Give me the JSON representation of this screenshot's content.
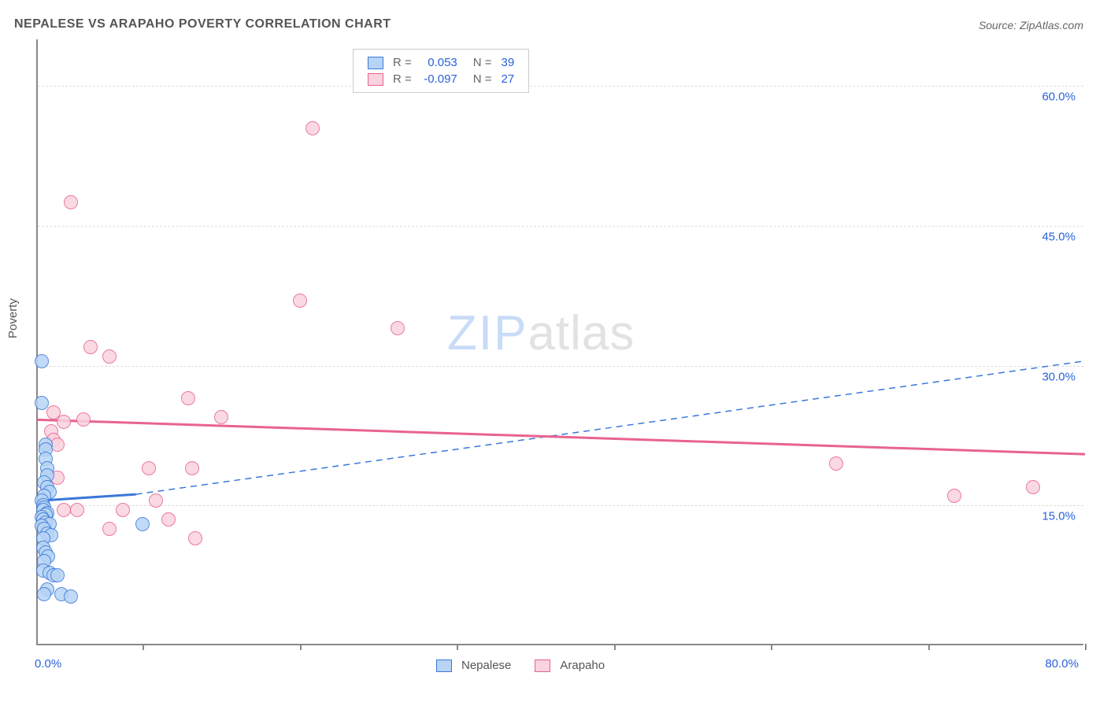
{
  "title": "NEPALESE VS ARAPAHO POVERTY CORRELATION CHART",
  "source": "Source: ZipAtlas.com",
  "ylabel": "Poverty",
  "watermark": {
    "zip": "ZIP",
    "atlas": "atlas"
  },
  "chart": {
    "type": "scatter",
    "xlim": [
      0,
      80
    ],
    "ylim": [
      0,
      65
    ],
    "x_axis_label_min": "0.0%",
    "x_axis_label_max": "80.0%",
    "y_grid": [
      {
        "value": 15,
        "label": "15.0%"
      },
      {
        "value": 30,
        "label": "30.0%"
      },
      {
        "value": 45,
        "label": "45.0%"
      },
      {
        "value": 60,
        "label": "60.0%"
      }
    ],
    "x_ticks": [
      8,
      20,
      32,
      44,
      56,
      68,
      80
    ],
    "background_color": "#ffffff",
    "grid_color": "#dddddd",
    "axis_color": "#888888",
    "point_radius": 9,
    "series": [
      {
        "name": "Nepalese",
        "fill": "#b7d4f5",
        "stroke": "#3b78d8",
        "r_value": "0.053",
        "n_value": "39",
        "trend": {
          "x1": 0,
          "y1": 15.5,
          "x2": 7.5,
          "y2": 16.2,
          "dash_to_x": 80,
          "dash_to_y": 30.5,
          "solid_width": 3,
          "dash_pattern": "8,6"
        },
        "points": [
          [
            0.3,
            30.5
          ],
          [
            0.3,
            26.0
          ],
          [
            0.6,
            21.5
          ],
          [
            0.6,
            21.0
          ],
          [
            0.6,
            20.0
          ],
          [
            0.7,
            19.0
          ],
          [
            0.7,
            18.2
          ],
          [
            0.5,
            17.5
          ],
          [
            0.7,
            17.0
          ],
          [
            0.9,
            16.5
          ],
          [
            0.5,
            16.0
          ],
          [
            0.3,
            15.5
          ],
          [
            0.4,
            15.0
          ],
          [
            0.5,
            14.8
          ],
          [
            0.4,
            14.5
          ],
          [
            0.7,
            14.2
          ],
          [
            0.6,
            14.0
          ],
          [
            0.3,
            13.8
          ],
          [
            0.4,
            13.5
          ],
          [
            0.6,
            13.2
          ],
          [
            0.9,
            13.0
          ],
          [
            0.3,
            12.8
          ],
          [
            0.5,
            12.5
          ],
          [
            0.7,
            12.0
          ],
          [
            1.0,
            11.8
          ],
          [
            0.4,
            11.5
          ],
          [
            0.4,
            10.5
          ],
          [
            0.6,
            10.0
          ],
          [
            0.8,
            9.5
          ],
          [
            0.5,
            9.0
          ],
          [
            0.4,
            8.0
          ],
          [
            0.9,
            7.8
          ],
          [
            1.2,
            7.5
          ],
          [
            1.5,
            7.5
          ],
          [
            0.7,
            6.0
          ],
          [
            0.5,
            5.5
          ],
          [
            1.8,
            5.5
          ],
          [
            2.5,
            5.2
          ],
          [
            8.0,
            13.0
          ]
        ]
      },
      {
        "name": "Arapaho",
        "fill": "#fad3de",
        "stroke": "#e8638f",
        "r_value": "-0.097",
        "n_value": "27",
        "trend": {
          "x1": 0,
          "y1": 24.2,
          "x2": 80,
          "y2": 20.5,
          "solid_width": 3
        },
        "points": [
          [
            2.5,
            47.5
          ],
          [
            21.0,
            55.5
          ],
          [
            20.0,
            37.0
          ],
          [
            27.5,
            34.0
          ],
          [
            4.0,
            32.0
          ],
          [
            5.5,
            31.0
          ],
          [
            11.5,
            26.5
          ],
          [
            1.2,
            25.0
          ],
          [
            14.0,
            24.5
          ],
          [
            1.0,
            23.0
          ],
          [
            1.2,
            22.0
          ],
          [
            1.5,
            21.5
          ],
          [
            3.5,
            24.2
          ],
          [
            8.5,
            19.0
          ],
          [
            11.8,
            19.0
          ],
          [
            61.0,
            19.5
          ],
          [
            9.0,
            15.5
          ],
          [
            70.0,
            16.0
          ],
          [
            76.0,
            17.0
          ],
          [
            10.0,
            13.5
          ],
          [
            12.0,
            11.5
          ],
          [
            5.5,
            12.5
          ],
          [
            2.0,
            14.5
          ],
          [
            6.5,
            14.5
          ],
          [
            1.5,
            18.0
          ],
          [
            2.0,
            24.0
          ],
          [
            3.0,
            14.5
          ]
        ]
      }
    ]
  },
  "legend_top": {
    "R_label": "R =",
    "N_label": "N ="
  },
  "legend_bottom": {
    "items": [
      "Nepalese",
      "Arapaho"
    ]
  }
}
